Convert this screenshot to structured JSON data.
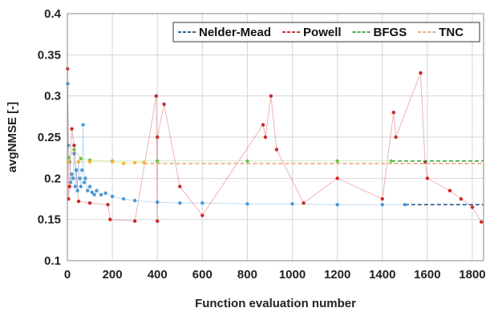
{
  "chart_data": {
    "type": "scatter",
    "title": "",
    "xlabel": "Function evaluation number",
    "ylabel": "avgNMSE [-]",
    "xlim": [
      0,
      1850
    ],
    "ylim": [
      0.1,
      0.4
    ],
    "xticks": [
      0,
      200,
      400,
      600,
      800,
      1000,
      1200,
      1400,
      1600,
      1800
    ],
    "yticks": [
      0.1,
      0.15,
      0.2,
      0.25,
      0.3,
      0.35,
      0.4
    ],
    "x_tick_labels": [
      "0",
      "200",
      "400",
      "600",
      "800",
      "1000",
      "1200",
      "1400",
      "1600",
      "1800"
    ],
    "y_tick_labels": [
      "0.1",
      "0.15",
      "0.2",
      "0.25",
      "0.3",
      "0.35",
      "0.4"
    ],
    "grid": true,
    "legend_position": "top-right",
    "series": [
      {
        "name": "Nelder-Mead",
        "color": "#4a9ad8",
        "line_color": "#1f4e8c",
        "points": [
          [
            2,
            0.315
          ],
          [
            5,
            0.24
          ],
          [
            10,
            0.22
          ],
          [
            15,
            0.195
          ],
          [
            20,
            0.205
          ],
          [
            25,
            0.2
          ],
          [
            30,
            0.23
          ],
          [
            35,
            0.19
          ],
          [
            40,
            0.21
          ],
          [
            45,
            0.185
          ],
          [
            50,
            0.22
          ],
          [
            55,
            0.2
          ],
          [
            60,
            0.19
          ],
          [
            65,
            0.21
          ],
          [
            70,
            0.265
          ],
          [
            75,
            0.195
          ],
          [
            80,
            0.2
          ],
          [
            90,
            0.185
          ],
          [
            100,
            0.19
          ],
          [
            110,
            0.183
          ],
          [
            120,
            0.18
          ],
          [
            130,
            0.185
          ],
          [
            150,
            0.18
          ],
          [
            170,
            0.182
          ],
          [
            200,
            0.178
          ],
          [
            250,
            0.175
          ],
          [
            300,
            0.173
          ],
          [
            400,
            0.171
          ],
          [
            500,
            0.17
          ],
          [
            600,
            0.17
          ],
          [
            800,
            0.169
          ],
          [
            1000,
            0.169
          ],
          [
            1200,
            0.168
          ],
          [
            1400,
            0.168
          ],
          [
            1500,
            0.168
          ]
        ],
        "final_value": 0.168
      },
      {
        "name": "Powell",
        "color": "#cc2a2a",
        "line_color": "#b01e1e",
        "points": [
          [
            1,
            0.333
          ],
          [
            5,
            0.175
          ],
          [
            10,
            0.19
          ],
          [
            20,
            0.26
          ],
          [
            30,
            0.24
          ],
          [
            50,
            0.172
          ],
          [
            100,
            0.17
          ],
          [
            180,
            0.168
          ],
          [
            190,
            0.15
          ],
          [
            300,
            0.148
          ],
          [
            400,
            0.148
          ],
          [
            395,
            0.3
          ],
          [
            430,
            0.29
          ],
          [
            400,
            0.25
          ],
          [
            500,
            0.19
          ],
          [
            600,
            0.155
          ],
          [
            870,
            0.265
          ],
          [
            880,
            0.25
          ],
          [
            905,
            0.3
          ],
          [
            930,
            0.235
          ],
          [
            1050,
            0.17
          ],
          [
            1200,
            0.2
          ],
          [
            1400,
            0.175
          ],
          [
            1450,
            0.28
          ],
          [
            1460,
            0.25
          ],
          [
            1570,
            0.328
          ],
          [
            1590,
            0.22
          ],
          [
            1600,
            0.2
          ],
          [
            1700,
            0.185
          ],
          [
            1750,
            0.175
          ],
          [
            1800,
            0.165
          ],
          [
            1840,
            0.147
          ]
        ],
        "final_value": 0.147
      },
      {
        "name": "BFGS",
        "color": "#6fbf45",
        "line_color": "#2e9e3a",
        "points": [
          [
            5,
            0.225
          ],
          [
            30,
            0.235
          ],
          [
            60,
            0.224
          ],
          [
            100,
            0.222
          ],
          [
            200,
            0.221
          ],
          [
            400,
            0.221
          ],
          [
            800,
            0.221
          ],
          [
            1200,
            0.221
          ],
          [
            1440,
            0.221
          ]
        ],
        "final_value": 0.221
      },
      {
        "name": "TNC",
        "color": "#f5b731",
        "line_color": "#e8a070",
        "points": [
          [
            5,
            0.22
          ],
          [
            50,
            0.22
          ],
          [
            100,
            0.22
          ],
          [
            200,
            0.22
          ],
          [
            250,
            0.218
          ],
          [
            300,
            0.219
          ],
          [
            340,
            0.219
          ]
        ],
        "final_value": 0.218
      }
    ]
  }
}
